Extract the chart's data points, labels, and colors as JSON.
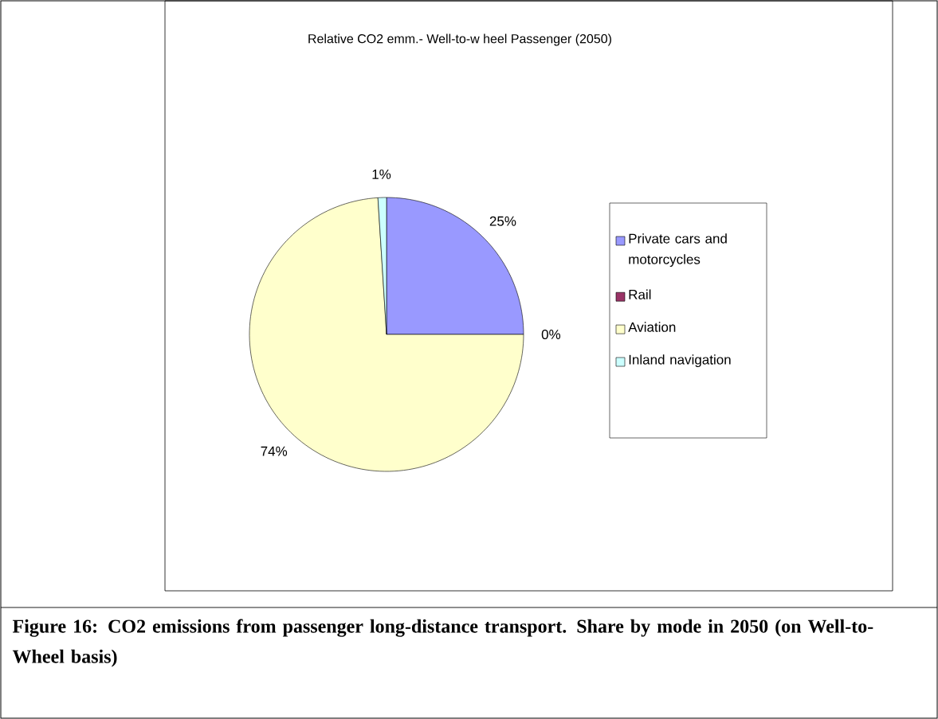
{
  "chart_data": {
    "type": "pie",
    "title": "Relative CO2 emm.- Well-to-w heel Passenger (2050)",
    "categories": [
      "Private cars and motorcycles",
      "Rail",
      "Aviation",
      "Inland navigation"
    ],
    "values": [
      25,
      0,
      74,
      1
    ],
    "value_labels": [
      "25%",
      "0%",
      "74%",
      "1%"
    ],
    "colors": [
      "#9999ff",
      "#993366",
      "#ffffcc",
      "#ccffff"
    ],
    "legend": "right",
    "annotations": [
      "Figure 16: CO2 emissions from passenger long-distance transport. Share by mode in 2050 (on Well-to-Wheel basis)"
    ]
  }
}
